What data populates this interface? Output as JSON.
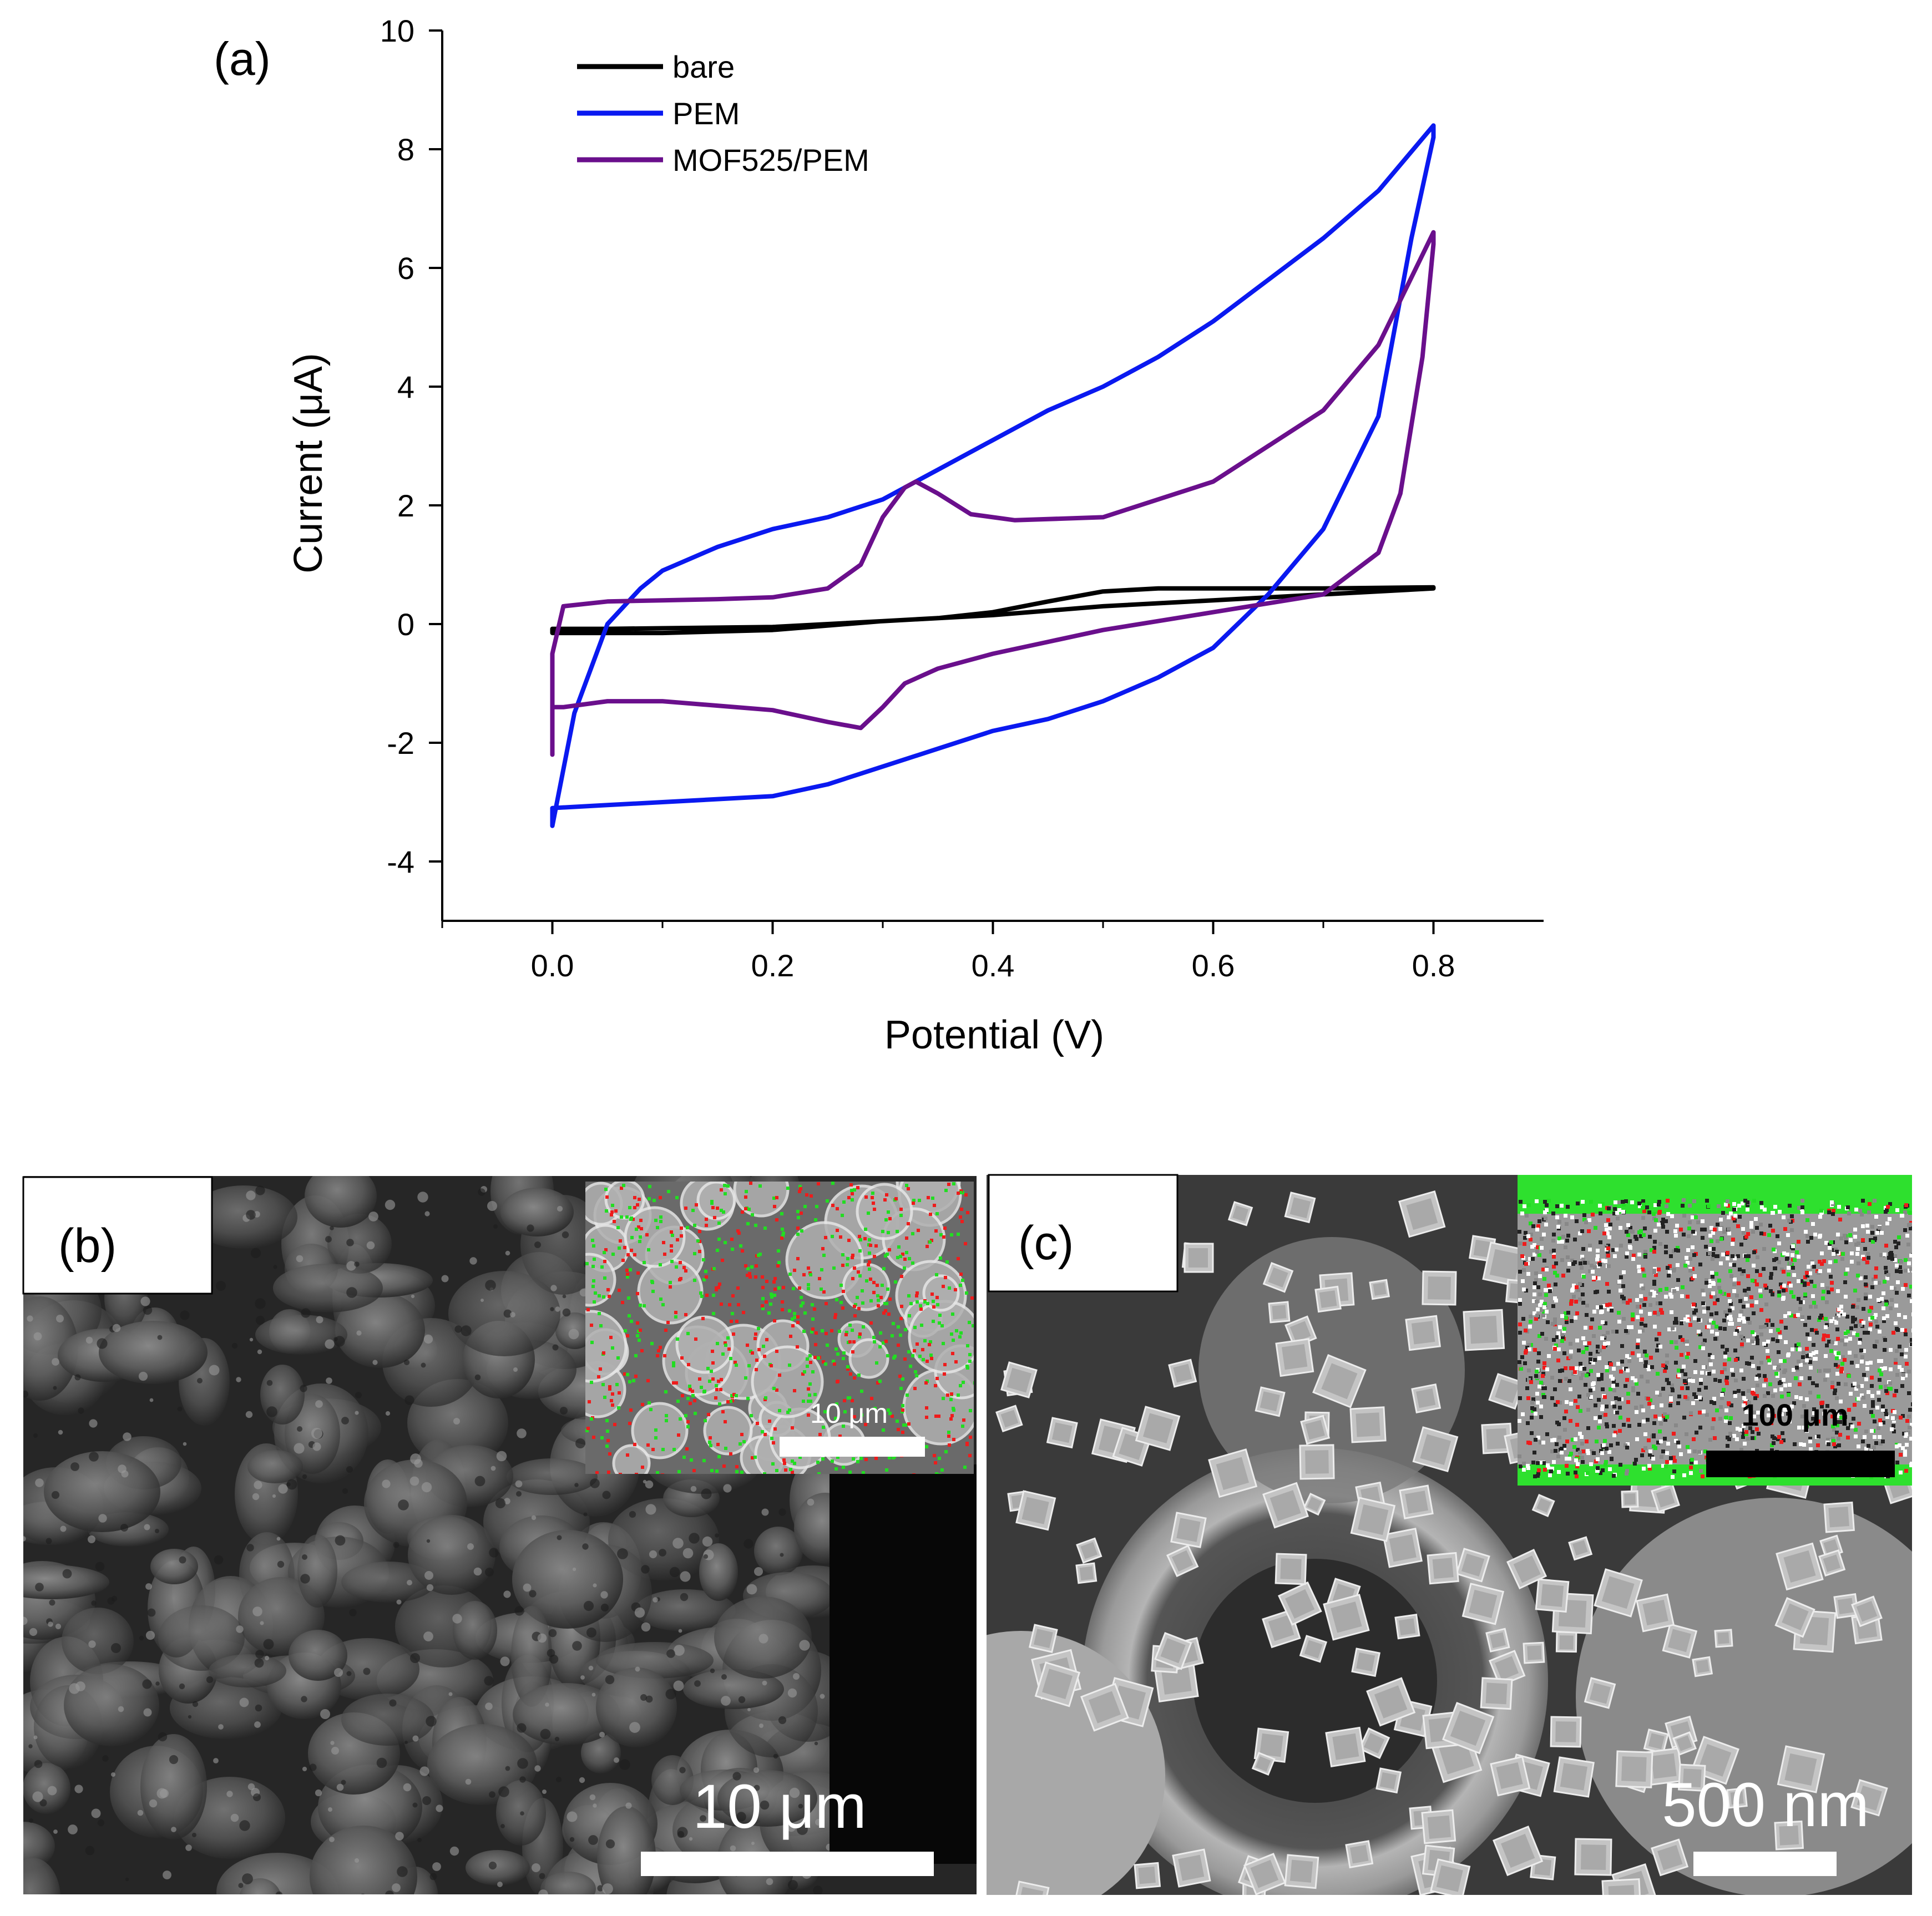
{
  "chart_data": {
    "type": "line",
    "panel_label": "(a)",
    "xlabel": "Potential (V)",
    "ylabel": "Current (μA)",
    "xlim": [
      -0.1,
      0.9
    ],
    "ylim": [
      -5,
      10
    ],
    "x_ticks": [
      0.0,
      0.2,
      0.4,
      0.6,
      0.8
    ],
    "x_tick_labels": [
      "0.0",
      "0.2",
      "0.4",
      "0.6",
      "0.8"
    ],
    "y_ticks": [
      -4,
      -2,
      0,
      2,
      4,
      6,
      8,
      10
    ],
    "y_tick_labels": [
      "-4",
      "-2",
      "0",
      "2",
      "4",
      "6",
      "8",
      "10"
    ],
    "grid": false,
    "legend_position": "top-left",
    "series": [
      {
        "name": "bare",
        "color": "#000000",
        "x": [
          0.0,
          0.05,
          0.1,
          0.2,
          0.3,
          0.35,
          0.4,
          0.45,
          0.5,
          0.55,
          0.6,
          0.7,
          0.8,
          0.8,
          0.7,
          0.6,
          0.5,
          0.4,
          0.3,
          0.2,
          0.1,
          0.05,
          0.0,
          0.0
        ],
        "y": [
          -0.08,
          -0.08,
          -0.07,
          -0.05,
          0.05,
          0.1,
          0.2,
          0.38,
          0.55,
          0.6,
          0.6,
          0.6,
          0.62,
          0.6,
          0.5,
          0.4,
          0.3,
          0.15,
          0.05,
          -0.1,
          -0.15,
          -0.15,
          -0.15,
          -0.08
        ]
      },
      {
        "name": "PEM",
        "color": "#0a19f0",
        "x": [
          0.0,
          0.02,
          0.05,
          0.08,
          0.1,
          0.15,
          0.2,
          0.25,
          0.3,
          0.35,
          0.4,
          0.45,
          0.5,
          0.55,
          0.6,
          0.65,
          0.7,
          0.75,
          0.8,
          0.8,
          0.78,
          0.75,
          0.7,
          0.65,
          0.6,
          0.55,
          0.5,
          0.45,
          0.4,
          0.35,
          0.3,
          0.25,
          0.2,
          0.1,
          0.05,
          0.0,
          0.0
        ],
        "y": [
          -3.4,
          -1.5,
          0.0,
          0.6,
          0.9,
          1.3,
          1.6,
          1.8,
          2.1,
          2.6,
          3.1,
          3.6,
          4.0,
          4.5,
          5.1,
          5.8,
          6.5,
          7.3,
          8.4,
          8.2,
          6.5,
          3.5,
          1.6,
          0.5,
          -0.4,
          -0.9,
          -1.3,
          -1.6,
          -1.8,
          -2.1,
          -2.4,
          -2.7,
          -2.9,
          -3.0,
          -3.05,
          -3.1,
          -3.4
        ]
      },
      {
        "name": "MOF525/PEM",
        "color": "#6a0f8c",
        "x": [
          0.0,
          0.0,
          0.01,
          0.05,
          0.1,
          0.15,
          0.2,
          0.25,
          0.28,
          0.3,
          0.32,
          0.33,
          0.35,
          0.38,
          0.42,
          0.5,
          0.6,
          0.7,
          0.75,
          0.8,
          0.8,
          0.79,
          0.77,
          0.75,
          0.7,
          0.65,
          0.6,
          0.5,
          0.45,
          0.4,
          0.35,
          0.32,
          0.3,
          0.28,
          0.25,
          0.2,
          0.1,
          0.05,
          0.01,
          0.0,
          0.0
        ],
        "y": [
          -2.2,
          -0.5,
          0.3,
          0.38,
          0.4,
          0.42,
          0.45,
          0.6,
          1.0,
          1.8,
          2.3,
          2.4,
          2.2,
          1.85,
          1.75,
          1.8,
          2.4,
          3.6,
          4.7,
          6.6,
          6.4,
          4.5,
          2.2,
          1.2,
          0.5,
          0.35,
          0.2,
          -0.1,
          -0.3,
          -0.5,
          -0.75,
          -1.0,
          -1.4,
          -1.75,
          -1.65,
          -1.45,
          -1.3,
          -1.3,
          -1.4,
          -1.4,
          -2.2
        ]
      }
    ]
  },
  "images": {
    "sem_b": {
      "panel_label": "(b)",
      "scale_bar_label": "10 μm",
      "inset_scale_bar_label": "10 μm"
    },
    "sem_c": {
      "panel_label": "(c)",
      "scale_bar_label": "500 nm",
      "inset_scale_bar_label": "100 μm"
    }
  }
}
